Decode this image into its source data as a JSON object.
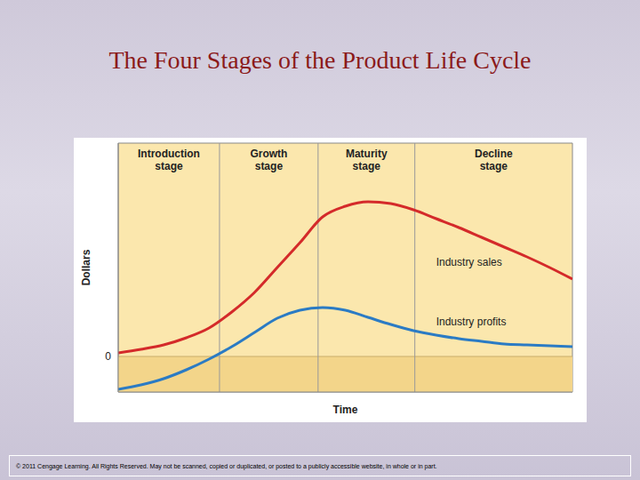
{
  "chart_data": {
    "type": "line",
    "title": "The Four Stages of the Product Life Cycle",
    "x_label": "Time",
    "y_label": "Dollars",
    "x": [
      0,
      5,
      10,
      15,
      20,
      25,
      30,
      35,
      40,
      45,
      50,
      55,
      60,
      65,
      70,
      75,
      80,
      85,
      90,
      95,
      100
    ],
    "series": [
      {
        "name": "Industry sales",
        "color": "#d42a2a",
        "values": [
          0.2,
          0.4,
          0.65,
          1.05,
          1.6,
          2.5,
          3.6,
          5.0,
          6.4,
          7.85,
          8.45,
          8.7,
          8.6,
          8.25,
          7.75,
          7.25,
          6.7,
          6.15,
          5.6,
          5.0,
          4.35
        ],
        "label_at": [
          70,
          5.3
        ]
      },
      {
        "name": "Industry profits",
        "color": "#2b7bc4",
        "values": [
          -1.85,
          -1.6,
          -1.25,
          -0.75,
          -0.15,
          0.55,
          1.35,
          2.15,
          2.6,
          2.75,
          2.6,
          2.2,
          1.8,
          1.45,
          1.2,
          1.0,
          0.85,
          0.7,
          0.65,
          0.6,
          0.55
        ],
        "label_at": [
          70,
          1.95
        ]
      }
    ],
    "xlim": [
      0,
      100
    ],
    "xticks": [],
    "ylim": [
      -2,
      12
    ],
    "yticks": [
      0
    ],
    "tick_labels": "y",
    "stages": [
      {
        "label": "Introduction stage",
        "start": 0,
        "end": 22.3
      },
      {
        "label": "Growth stage",
        "start": 22.3,
        "end": 44
      },
      {
        "label": "Maturity stage",
        "start": 44,
        "end": 65.3
      },
      {
        "label": "Decline stage",
        "start": 65.3,
        "end": 100
      }
    ],
    "footer": "© 2011 Cengage Learning. All Rights Reserved. May not be scanned, copied or duplicated, or posted to a publicly accessible website, in whole or in part."
  }
}
